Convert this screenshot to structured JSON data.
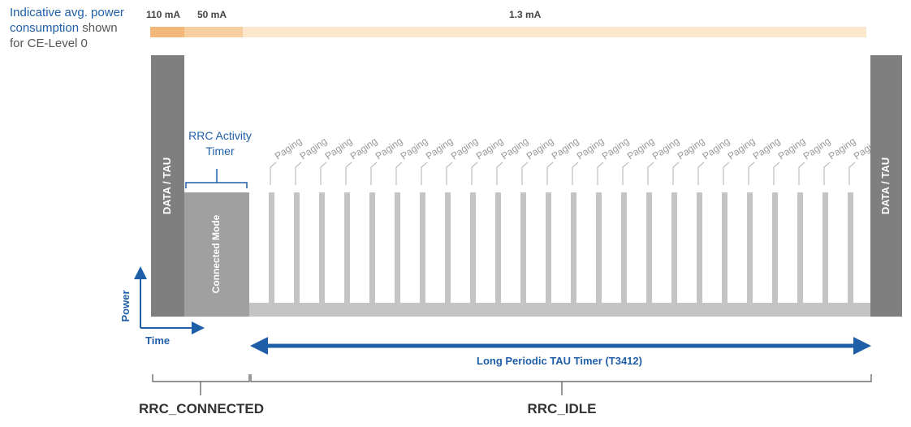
{
  "note": {
    "line1": "Indicative avg. power",
    "line2_a": "consumption",
    "line2_b": " shown",
    "line3": "for CE-Level 0"
  },
  "currents": {
    "data": "110 mA",
    "connected": "50 mA",
    "idle": "1.3 mA"
  },
  "blocks": {
    "data_tau_left": "DATA / TAU",
    "data_tau_right": "DATA / TAU",
    "connected_mode": "Connected Mode"
  },
  "rrc_activity_timer": [
    "RRC Activity",
    "Timer"
  ],
  "paging_label": "Paging",
  "paging_count": 24,
  "axes": {
    "x": "Time",
    "y": "Power"
  },
  "tau_timer": "Long Periodic TAU Timer (T3412)",
  "states": {
    "connected": "RRC_CONNECTED",
    "idle": "RRC_IDLE"
  },
  "colors": {
    "accent": "#1f5fa8",
    "orange_dark": "#f4b77a",
    "orange_mid": "#f7cf9f",
    "orange_light": "#fbe7cc",
    "data_block": "#7f7f7f",
    "connected_block": "#a0a0a0",
    "idle_bar": "#c4c4c4"
  }
}
